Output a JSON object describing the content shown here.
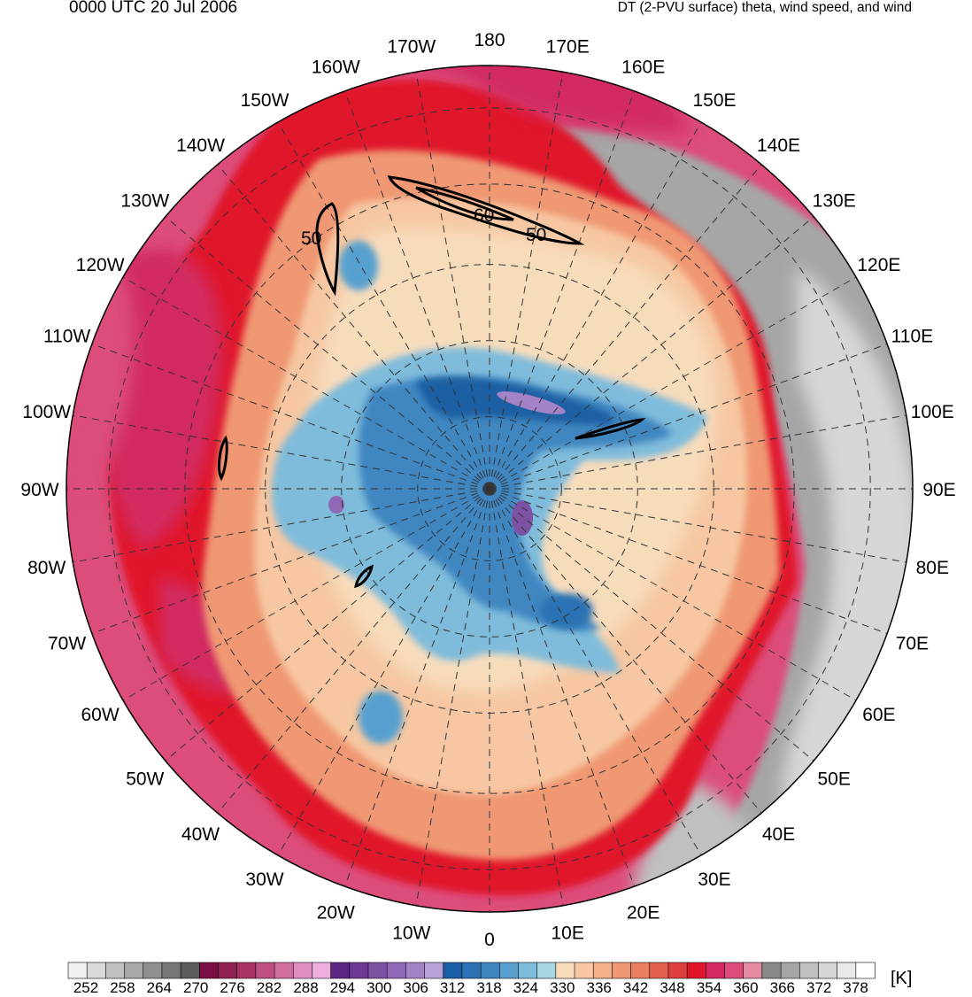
{
  "header": {
    "time_label": "0000 UTC 20 Jul 2006",
    "field_label": "DT (2-PVU surface) theta, wind speed, and wind"
  },
  "map": {
    "projection": "north-polar-stereographic",
    "longitude_labels": [
      {
        "text": "180",
        "lon": 180
      },
      {
        "text": "170E",
        "lon": 170
      },
      {
        "text": "160E",
        "lon": 160
      },
      {
        "text": "150E",
        "lon": 150
      },
      {
        "text": "140E",
        "lon": 140
      },
      {
        "text": "130E",
        "lon": 130
      },
      {
        "text": "120E",
        "lon": 120
      },
      {
        "text": "110E",
        "lon": 110
      },
      {
        "text": "100E",
        "lon": 100
      },
      {
        "text": "90E",
        "lon": 90
      },
      {
        "text": "80E",
        "lon": 80
      },
      {
        "text": "70E",
        "lon": 70
      },
      {
        "text": "60E",
        "lon": 60
      },
      {
        "text": "50E",
        "lon": 50
      },
      {
        "text": "40E",
        "lon": 40
      },
      {
        "text": "30E",
        "lon": 30
      },
      {
        "text": "20E",
        "lon": 20
      },
      {
        "text": "10E",
        "lon": 10
      },
      {
        "text": "0",
        "lon": 0
      },
      {
        "text": "10W",
        "lon": -10
      },
      {
        "text": "20W",
        "lon": -20
      },
      {
        "text": "30W",
        "lon": -30
      },
      {
        "text": "40W",
        "lon": -40
      },
      {
        "text": "50W",
        "lon": -50
      },
      {
        "text": "60W",
        "lon": -60
      },
      {
        "text": "70W",
        "lon": -70
      },
      {
        "text": "80W",
        "lon": -80
      },
      {
        "text": "90W",
        "lon": -90
      },
      {
        "text": "100W",
        "lon": -100
      },
      {
        "text": "110W",
        "lon": -110
      },
      {
        "text": "120W",
        "lon": -120
      },
      {
        "text": "130W",
        "lon": -130
      },
      {
        "text": "140W",
        "lon": -140
      },
      {
        "text": "150W",
        "lon": -150
      },
      {
        "text": "160W",
        "lon": -160
      },
      {
        "text": "170W",
        "lon": -170
      }
    ],
    "wind_speed_contour_labels": [
      "50",
      "60",
      "50"
    ]
  },
  "colorbar": {
    "unit": "[K]",
    "tick_labels": [
      "252",
      "258",
      "264",
      "270",
      "276",
      "282",
      "288",
      "294",
      "300",
      "306",
      "312",
      "318",
      "324",
      "330",
      "336",
      "342",
      "348",
      "354",
      "360",
      "366",
      "372",
      "378"
    ],
    "colors": [
      "#f0f0f0",
      "#d9d9d9",
      "#c2c2c2",
      "#a8a8a8",
      "#8f8f8f",
      "#767676",
      "#5c5c5c",
      "#7a0f45",
      "#922052",
      "#a83463",
      "#bf4e82",
      "#d16ea0",
      "#e08fc0",
      "#eeaede",
      "#5b2783",
      "#6c3a93",
      "#7d52a4",
      "#8f69b5",
      "#a383c7",
      "#b8a2d8",
      "#1a5fa3",
      "#2c72b3",
      "#3f86c1",
      "#57a0cf",
      "#7fbcdb",
      "#a9d6e3",
      "#f7dcbc",
      "#f6c7a2",
      "#f3b08a",
      "#ef9873",
      "#ea7d60",
      "#e4604e",
      "#dc3f3d",
      "#e0142a",
      "#d22a60",
      "#dc4d7a",
      "#e48aa2",
      "#8a8a8a",
      "#a6a6a6",
      "#c0c0c0",
      "#d6d6d6",
      "#e9e9e9",
      "#ffffff"
    ]
  }
}
